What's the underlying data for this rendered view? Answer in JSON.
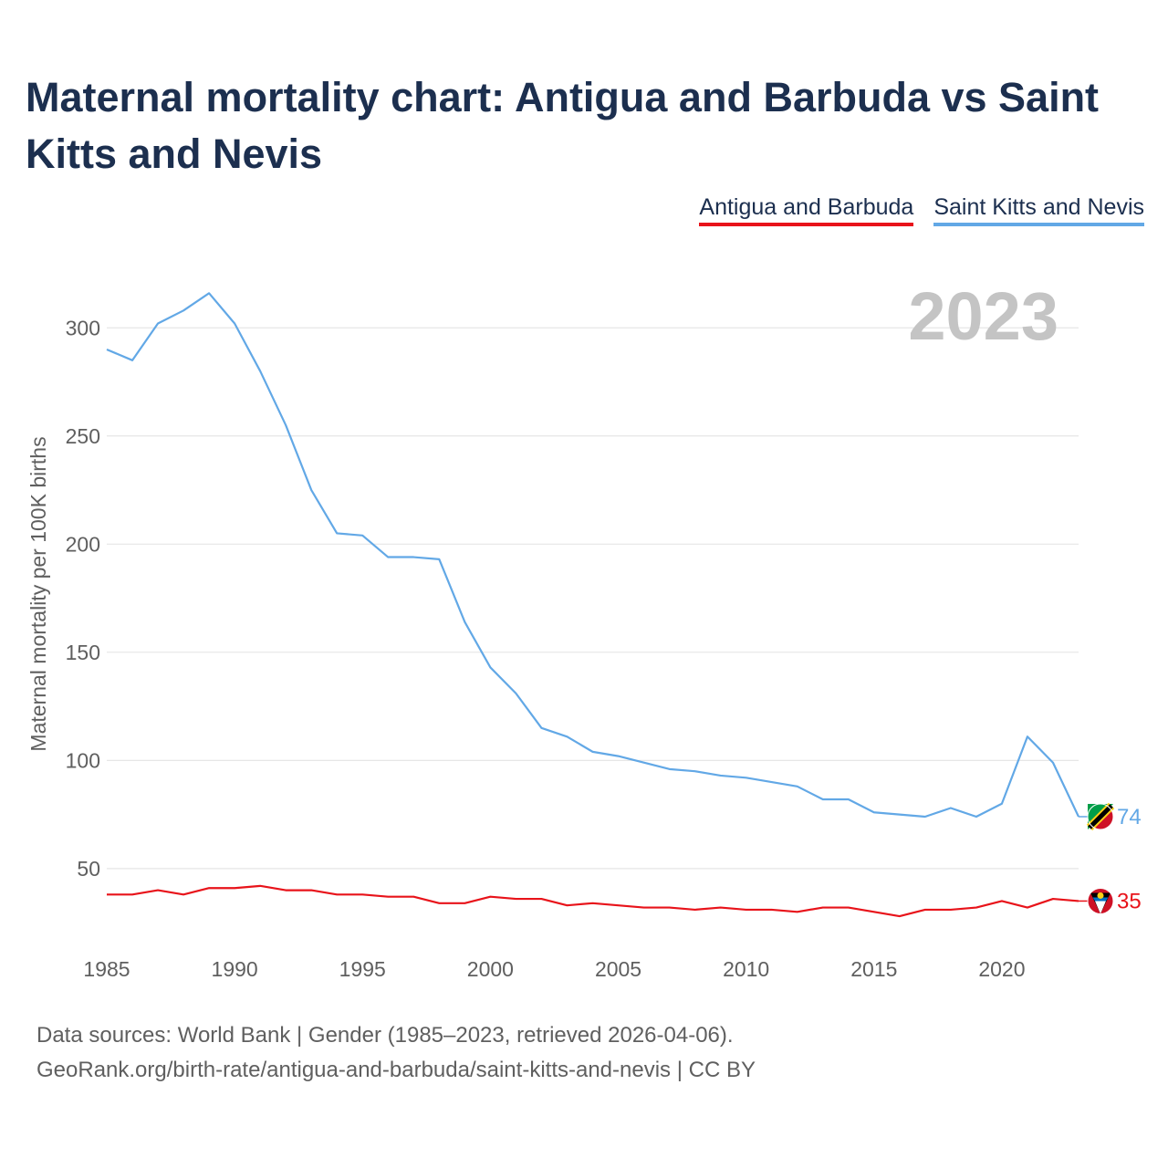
{
  "chart_data": {
    "type": "line",
    "title": "Maternal mortality chart: Antigua and Barbuda vs Saint Kitts and Nevis",
    "ylabel": "Maternal mortality per 100K births",
    "xlabel": "",
    "year_label": "2023",
    "xlim": [
      1985,
      2023
    ],
    "ylim": [
      20,
      325
    ],
    "yticks": [
      50,
      100,
      150,
      200,
      250,
      300
    ],
    "xticks": [
      1985,
      1990,
      1995,
      2000,
      2005,
      2010,
      2015,
      2020
    ],
    "x": [
      1985,
      1986,
      1987,
      1988,
      1989,
      1990,
      1991,
      1992,
      1993,
      1994,
      1995,
      1996,
      1997,
      1998,
      1999,
      2000,
      2001,
      2002,
      2003,
      2004,
      2005,
      2006,
      2007,
      2008,
      2009,
      2010,
      2011,
      2012,
      2013,
      2014,
      2015,
      2016,
      2017,
      2018,
      2019,
      2020,
      2021,
      2022,
      2023
    ],
    "series": [
      {
        "name": "Antigua and Barbuda",
        "color": "#e8131a",
        "end_label": "35",
        "values": [
          38,
          38,
          40,
          38,
          41,
          41,
          42,
          40,
          40,
          38,
          38,
          37,
          37,
          34,
          34,
          37,
          36,
          36,
          33,
          34,
          33,
          32,
          32,
          31,
          32,
          31,
          31,
          30,
          32,
          32,
          30,
          28,
          31,
          31,
          32,
          35,
          32,
          36,
          35
        ]
      },
      {
        "name": "Saint Kitts and Nevis",
        "color": "#62a8e6",
        "end_label": "74",
        "values": [
          290,
          285,
          302,
          308,
          316,
          302,
          280,
          255,
          225,
          205,
          204,
          194,
          194,
          193,
          164,
          143,
          131,
          115,
          111,
          104,
          102,
          99,
          96,
          95,
          93,
          92,
          90,
          88,
          82,
          82,
          76,
          75,
          74,
          78,
          74,
          80,
          111,
          99,
          74
        ]
      }
    ]
  },
  "source": {
    "line1": "Data sources: World Bank | Gender (1985–2023, retrieved 2026-04-06).",
    "line2": "GeoRank.org/birth-rate/antigua-and-barbuda/saint-kitts-and-nevis | CC BY"
  }
}
